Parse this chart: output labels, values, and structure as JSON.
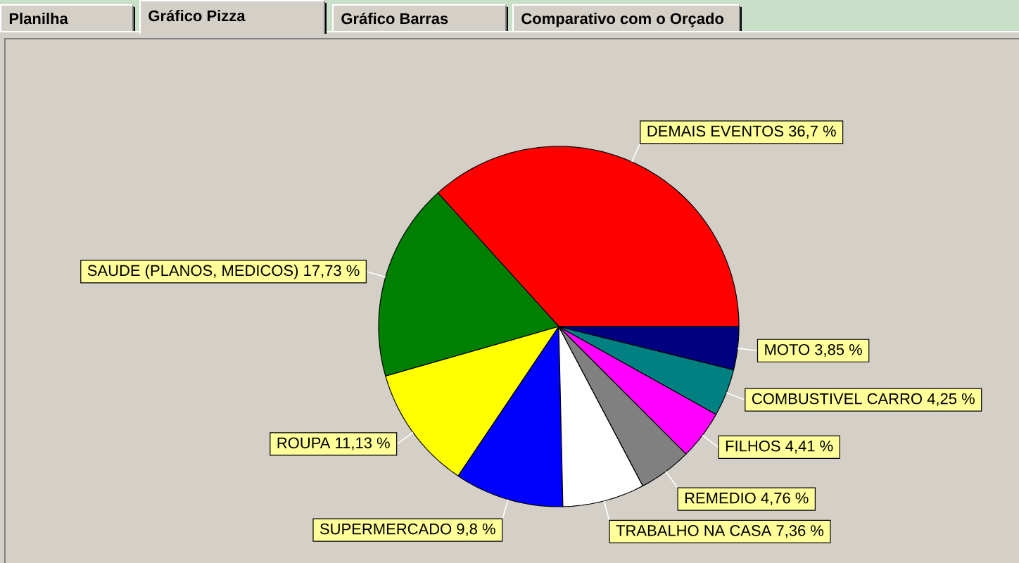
{
  "chart_data": {
    "type": "pie",
    "categories": [
      "DEMAIS EVENTOS",
      "SAUDE (PLANOS, MEDICOS)",
      "ROUPA",
      "SUPERMERCADO",
      "TRABALHO NA CASA",
      "REMEDIO",
      "FILHOS",
      "COMBUSTIVEL CARRO",
      "MOTO"
    ],
    "values": [
      36.7,
      17.73,
      11.13,
      9.8,
      7.36,
      4.76,
      4.41,
      4.25,
      3.85
    ],
    "value_labels": [
      "36,7 %",
      "17,73 %",
      "11,13 %",
      "9,8 %",
      "7,36 %",
      "4,76 %",
      "4,41 %",
      "4,25 %",
      "3,85 %"
    ],
    "colors": [
      "#ff0000",
      "#008000",
      "#ffff00",
      "#0000ff",
      "#ffffff",
      "#808080",
      "#ff00ff",
      "#008080",
      "#000080"
    ],
    "annotations": [
      "Planilha",
      "Gráfico Pizza",
      "Gráfico Barras",
      "Comparativo com o Orçado"
    ]
  }
}
